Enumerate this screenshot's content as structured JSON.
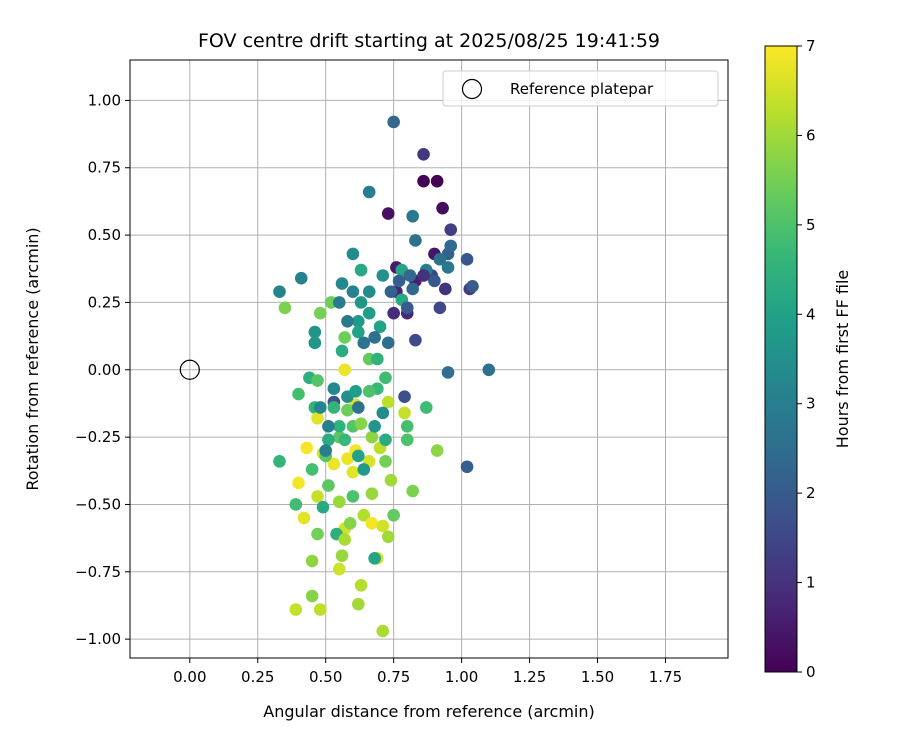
{
  "chart_data": {
    "type": "scatter",
    "title": "FOV centre drift starting at 2025/08/25 19:41:59",
    "xlabel": "Angular distance from reference (arcmin)",
    "ylabel": "Rotation from reference (arcmin)",
    "xlim": [
      -0.22,
      1.98
    ],
    "ylim": [
      -1.07,
      1.15
    ],
    "xticks": [
      "0.00",
      "0.25",
      "0.50",
      "0.75",
      "1.00",
      "1.25",
      "1.50",
      "1.75"
    ],
    "xtick_values": [
      0,
      0.25,
      0.5,
      0.75,
      1.0,
      1.25,
      1.5,
      1.75
    ],
    "yticks": [
      "−1.00",
      "−0.75",
      "−0.50",
      "−0.25",
      "0.00",
      "0.25",
      "0.50",
      "0.75",
      "1.00"
    ],
    "ytick_values": [
      -1.0,
      -0.75,
      -0.5,
      -0.25,
      0,
      0.25,
      0.5,
      0.75,
      1.0
    ],
    "grid": true,
    "legend": {
      "position": "top-right",
      "label": "Reference platepar"
    },
    "reference_point": {
      "x": 0.0,
      "y": 0.0
    },
    "colorbar": {
      "label": "Hours from first FF file",
      "min": 0,
      "max": 7,
      "ticks": [
        "0",
        "1",
        "2",
        "3",
        "4",
        "5",
        "6",
        "7"
      ],
      "tick_values": [
        0,
        1,
        2,
        3,
        4,
        5,
        6,
        7
      ],
      "colormap": "viridis"
    },
    "points": [
      {
        "x": 0.91,
        "y": 0.7,
        "h": 0.0
      },
      {
        "x": 0.86,
        "y": 0.7,
        "h": 0.1
      },
      {
        "x": 0.93,
        "y": 0.6,
        "h": 0.2
      },
      {
        "x": 0.73,
        "y": 0.58,
        "h": 0.3
      },
      {
        "x": 0.9,
        "y": 0.43,
        "h": 0.4
      },
      {
        "x": 0.76,
        "y": 0.38,
        "h": 0.5
      },
      {
        "x": 0.83,
        "y": 0.33,
        "h": 0.6
      },
      {
        "x": 0.76,
        "y": 0.29,
        "h": 0.7
      },
      {
        "x": 0.8,
        "y": 0.21,
        "h": 0.8
      },
      {
        "x": 0.75,
        "y": 0.21,
        "h": 0.9
      },
      {
        "x": 0.94,
        "y": 0.3,
        "h": 1.0
      },
      {
        "x": 0.86,
        "y": 0.8,
        "h": 1.1
      },
      {
        "x": 1.03,
        "y": 0.3,
        "h": 1.2
      },
      {
        "x": 0.96,
        "y": 0.52,
        "h": 1.3
      },
      {
        "x": 0.89,
        "y": 0.35,
        "h": 1.4
      },
      {
        "x": 0.92,
        "y": 0.23,
        "h": 1.5
      },
      {
        "x": 0.83,
        "y": 0.11,
        "h": 1.6
      },
      {
        "x": 0.79,
        "y": -0.1,
        "h": 1.7
      },
      {
        "x": 0.53,
        "y": -0.12,
        "h": 1.8
      },
      {
        "x": 1.02,
        "y": 0.41,
        "h": 1.9
      },
      {
        "x": 1.04,
        "y": 0.31,
        "h": 2.0
      },
      {
        "x": 1.02,
        "y": -0.36,
        "h": 2.1
      },
      {
        "x": 0.95,
        "y": 0.43,
        "h": 2.2
      },
      {
        "x": 0.75,
        "y": 0.92,
        "h": 2.3
      },
      {
        "x": 0.96,
        "y": 0.46,
        "h": 2.4
      },
      {
        "x": 0.95,
        "y": -0.01,
        "h": 2.5
      },
      {
        "x": 1.1,
        "y": 0.0,
        "h": 2.6
      },
      {
        "x": 0.83,
        "y": 0.48,
        "h": 2.7
      },
      {
        "x": 0.82,
        "y": 0.57,
        "h": 2.8
      },
      {
        "x": 0.87,
        "y": 0.37,
        "h": 2.9
      },
      {
        "x": 0.66,
        "y": 0.66,
        "h": 3.0
      },
      {
        "x": 0.41,
        "y": 0.34,
        "h": 3.1
      },
      {
        "x": 0.33,
        "y": 0.29,
        "h": 3.2
      },
      {
        "x": 0.56,
        "y": 0.32,
        "h": 3.3
      },
      {
        "x": 0.6,
        "y": 0.43,
        "h": 3.4
      },
      {
        "x": 0.71,
        "y": 0.35,
        "h": 3.5
      },
      {
        "x": 0.46,
        "y": 0.14,
        "h": 3.6
      },
      {
        "x": 0.46,
        "y": 0.1,
        "h": 3.7
      },
      {
        "x": 0.62,
        "y": 0.18,
        "h": 3.8
      },
      {
        "x": 0.66,
        "y": 0.21,
        "h": 3.9
      },
      {
        "x": 0.7,
        "y": 0.16,
        "h": 4.0
      },
      {
        "x": 0.78,
        "y": 0.37,
        "h": 4.1
      },
      {
        "x": 0.63,
        "y": 0.37,
        "h": 4.2
      },
      {
        "x": 0.56,
        "y": 0.07,
        "h": 4.3
      },
      {
        "x": 0.44,
        "y": -0.03,
        "h": 4.4
      },
      {
        "x": 0.46,
        "y": -0.14,
        "h": 4.5
      },
      {
        "x": 0.53,
        "y": -0.14,
        "h": 4.6
      },
      {
        "x": 0.69,
        "y": -0.07,
        "h": 4.7
      },
      {
        "x": 0.87,
        "y": -0.14,
        "h": 4.8
      },
      {
        "x": 0.8,
        "y": -0.21,
        "h": 4.9
      },
      {
        "x": 0.8,
        "y": -0.26,
        "h": 5.0
      },
      {
        "x": 0.6,
        "y": -0.21,
        "h": 5.1
      },
      {
        "x": 0.55,
        "y": -0.25,
        "h": 5.2
      },
      {
        "x": 0.66,
        "y": 0.04,
        "h": 5.3
      },
      {
        "x": 0.57,
        "y": 0.12,
        "h": 5.4
      },
      {
        "x": 0.48,
        "y": 0.21,
        "h": 5.5
      },
      {
        "x": 0.35,
        "y": 0.23,
        "h": 5.6
      },
      {
        "x": 0.45,
        "y": -0.84,
        "h": 5.7
      },
      {
        "x": 0.45,
        "y": -0.71,
        "h": 5.8
      },
      {
        "x": 0.56,
        "y": -0.69,
        "h": 5.9
      },
      {
        "x": 0.62,
        "y": -0.87,
        "h": 6.0
      },
      {
        "x": 0.71,
        "y": -0.97,
        "h": 6.1
      },
      {
        "x": 0.63,
        "y": -0.8,
        "h": 6.2
      },
      {
        "x": 0.48,
        "y": -0.89,
        "h": 6.3
      },
      {
        "x": 0.39,
        "y": -0.89,
        "h": 6.4
      },
      {
        "x": 0.55,
        "y": -0.74,
        "h": 6.5
      },
      {
        "x": 0.69,
        "y": -0.7,
        "h": 6.6
      },
      {
        "x": 0.42,
        "y": -0.55,
        "h": 6.7
      },
      {
        "x": 0.58,
        "y": -0.33,
        "h": 6.8
      },
      {
        "x": 0.61,
        "y": -0.3,
        "h": 6.9
      },
      {
        "x": 0.57,
        "y": -0.59,
        "h": 6.5
      },
      {
        "x": 0.73,
        "y": -0.62,
        "h": 6.0
      },
      {
        "x": 0.91,
        "y": -0.3,
        "h": 5.8
      },
      {
        "x": 0.82,
        "y": -0.45,
        "h": 5.6
      },
      {
        "x": 0.72,
        "y": -0.34,
        "h": 5.5
      },
      {
        "x": 0.67,
        "y": -0.46,
        "h": 5.9
      },
      {
        "x": 0.64,
        "y": -0.54,
        "h": 6.2
      },
      {
        "x": 0.51,
        "y": -0.43,
        "h": 5.2
      },
      {
        "x": 0.39,
        "y": -0.5,
        "h": 4.8
      },
      {
        "x": 0.33,
        "y": -0.34,
        "h": 4.6
      },
      {
        "x": 0.4,
        "y": -0.09,
        "h": 4.9
      },
      {
        "x": 0.47,
        "y": -0.04,
        "h": 5.1
      },
      {
        "x": 0.52,
        "y": 0.25,
        "h": 5.4
      },
      {
        "x": 0.57,
        "y": -0.0,
        "h": 6.8
      },
      {
        "x": 0.61,
        "y": -0.13,
        "h": 6.6
      },
      {
        "x": 0.73,
        "y": -0.12,
        "h": 6.3
      },
      {
        "x": 0.79,
        "y": -0.16,
        "h": 6.4
      },
      {
        "x": 0.47,
        "y": -0.18,
        "h": 6.7
      },
      {
        "x": 0.43,
        "y": -0.29,
        "h": 6.9
      },
      {
        "x": 0.49,
        "y": -0.31,
        "h": 6.6
      },
      {
        "x": 0.53,
        "y": -0.35,
        "h": 6.8
      },
      {
        "x": 0.4,
        "y": -0.42,
        "h": 6.9
      },
      {
        "x": 0.47,
        "y": -0.47,
        "h": 6.4
      },
      {
        "x": 0.6,
        "y": -0.38,
        "h": 6.7
      },
      {
        "x": 0.67,
        "y": -0.57,
        "h": 6.9
      },
      {
        "x": 0.71,
        "y": -0.58,
        "h": 6.5
      },
      {
        "x": 0.66,
        "y": -0.34,
        "h": 6.6
      },
      {
        "x": 0.7,
        "y": -0.29,
        "h": 6.3
      },
      {
        "x": 0.74,
        "y": -0.41,
        "h": 6.0
      },
      {
        "x": 0.63,
        "y": -0.2,
        "h": 5.7
      },
      {
        "x": 0.58,
        "y": -0.15,
        "h": 5.4
      },
      {
        "x": 0.67,
        "y": -0.25,
        "h": 5.8
      },
      {
        "x": 0.55,
        "y": -0.49,
        "h": 5.9
      },
      {
        "x": 0.59,
        "y": -0.57,
        "h": 5.7
      },
      {
        "x": 0.47,
        "y": -0.61,
        "h": 5.5
      },
      {
        "x": 0.54,
        "y": -0.61,
        "h": 4.4
      },
      {
        "x": 0.49,
        "y": -0.51,
        "h": 4.2
      },
      {
        "x": 0.6,
        "y": -0.47,
        "h": 5.0
      },
      {
        "x": 0.75,
        "y": -0.54,
        "h": 5.3
      },
      {
        "x": 0.68,
        "y": -0.7,
        "h": 4.1
      },
      {
        "x": 0.57,
        "y": -0.63,
        "h": 6.1
      },
      {
        "x": 0.5,
        "y": -0.32,
        "h": 5.2
      },
      {
        "x": 0.51,
        "y": -0.26,
        "h": 4.3
      },
      {
        "x": 0.55,
        "y": -0.21,
        "h": 4.5
      },
      {
        "x": 0.57,
        "y": -0.26,
        "h": 4.7
      },
      {
        "x": 0.62,
        "y": -0.32,
        "h": 4.0
      },
      {
        "x": 0.64,
        "y": -0.37,
        "h": 3.8
      },
      {
        "x": 0.68,
        "y": -0.21,
        "h": 3.6
      },
      {
        "x": 0.71,
        "y": -0.16,
        "h": 3.4
      },
      {
        "x": 0.66,
        "y": -0.08,
        "h": 5.0
      },
      {
        "x": 0.45,
        "y": -0.37,
        "h": 4.9
      },
      {
        "x": 0.48,
        "y": -0.14,
        "h": 3.2
      },
      {
        "x": 0.51,
        "y": -0.21,
        "h": 3.0
      },
      {
        "x": 0.53,
        "y": -0.07,
        "h": 3.3
      },
      {
        "x": 0.58,
        "y": -0.1,
        "h": 3.5
      },
      {
        "x": 0.61,
        "y": -0.08,
        "h": 3.9
      },
      {
        "x": 0.72,
        "y": -0.26,
        "h": 4.3
      },
      {
        "x": 0.6,
        "y": 0.29,
        "h": 3.1
      },
      {
        "x": 0.55,
        "y": 0.25,
        "h": 2.9
      },
      {
        "x": 0.58,
        "y": 0.18,
        "h": 2.8
      },
      {
        "x": 0.64,
        "y": 0.1,
        "h": 2.7
      },
      {
        "x": 0.68,
        "y": 0.12,
        "h": 2.6
      },
      {
        "x": 0.69,
        "y": 0.04,
        "h": 4.5
      },
      {
        "x": 0.73,
        "y": 0.1,
        "h": 2.5
      },
      {
        "x": 0.78,
        "y": 0.26,
        "h": 4.2
      },
      {
        "x": 0.81,
        "y": 0.35,
        "h": 2.4
      },
      {
        "x": 0.82,
        "y": 0.3,
        "h": 2.3
      },
      {
        "x": 0.74,
        "y": 0.29,
        "h": 2.2
      },
      {
        "x": 0.77,
        "y": 0.33,
        "h": 2.1
      },
      {
        "x": 0.8,
        "y": 0.23,
        "h": 2.0
      },
      {
        "x": 0.9,
        "y": 0.33,
        "h": 1.9
      },
      {
        "x": 0.92,
        "y": 0.41,
        "h": 2.6
      },
      {
        "x": 0.95,
        "y": 0.38,
        "h": 2.8
      },
      {
        "x": 0.86,
        "y": 0.35,
        "h": 1.0
      },
      {
        "x": 0.63,
        "y": 0.25,
        "h": 3.7
      },
      {
        "x": 0.66,
        "y": 0.29,
        "h": 3.4
      },
      {
        "x": 0.62,
        "y": 0.14,
        "h": 4.0
      },
      {
        "x": 0.5,
        "y": -0.3,
        "h": 3.0
      },
      {
        "x": 0.62,
        "y": -0.14,
        "h": 2.7
      },
      {
        "x": 0.72,
        "y": -0.03,
        "h": 4.8
      }
    ]
  }
}
